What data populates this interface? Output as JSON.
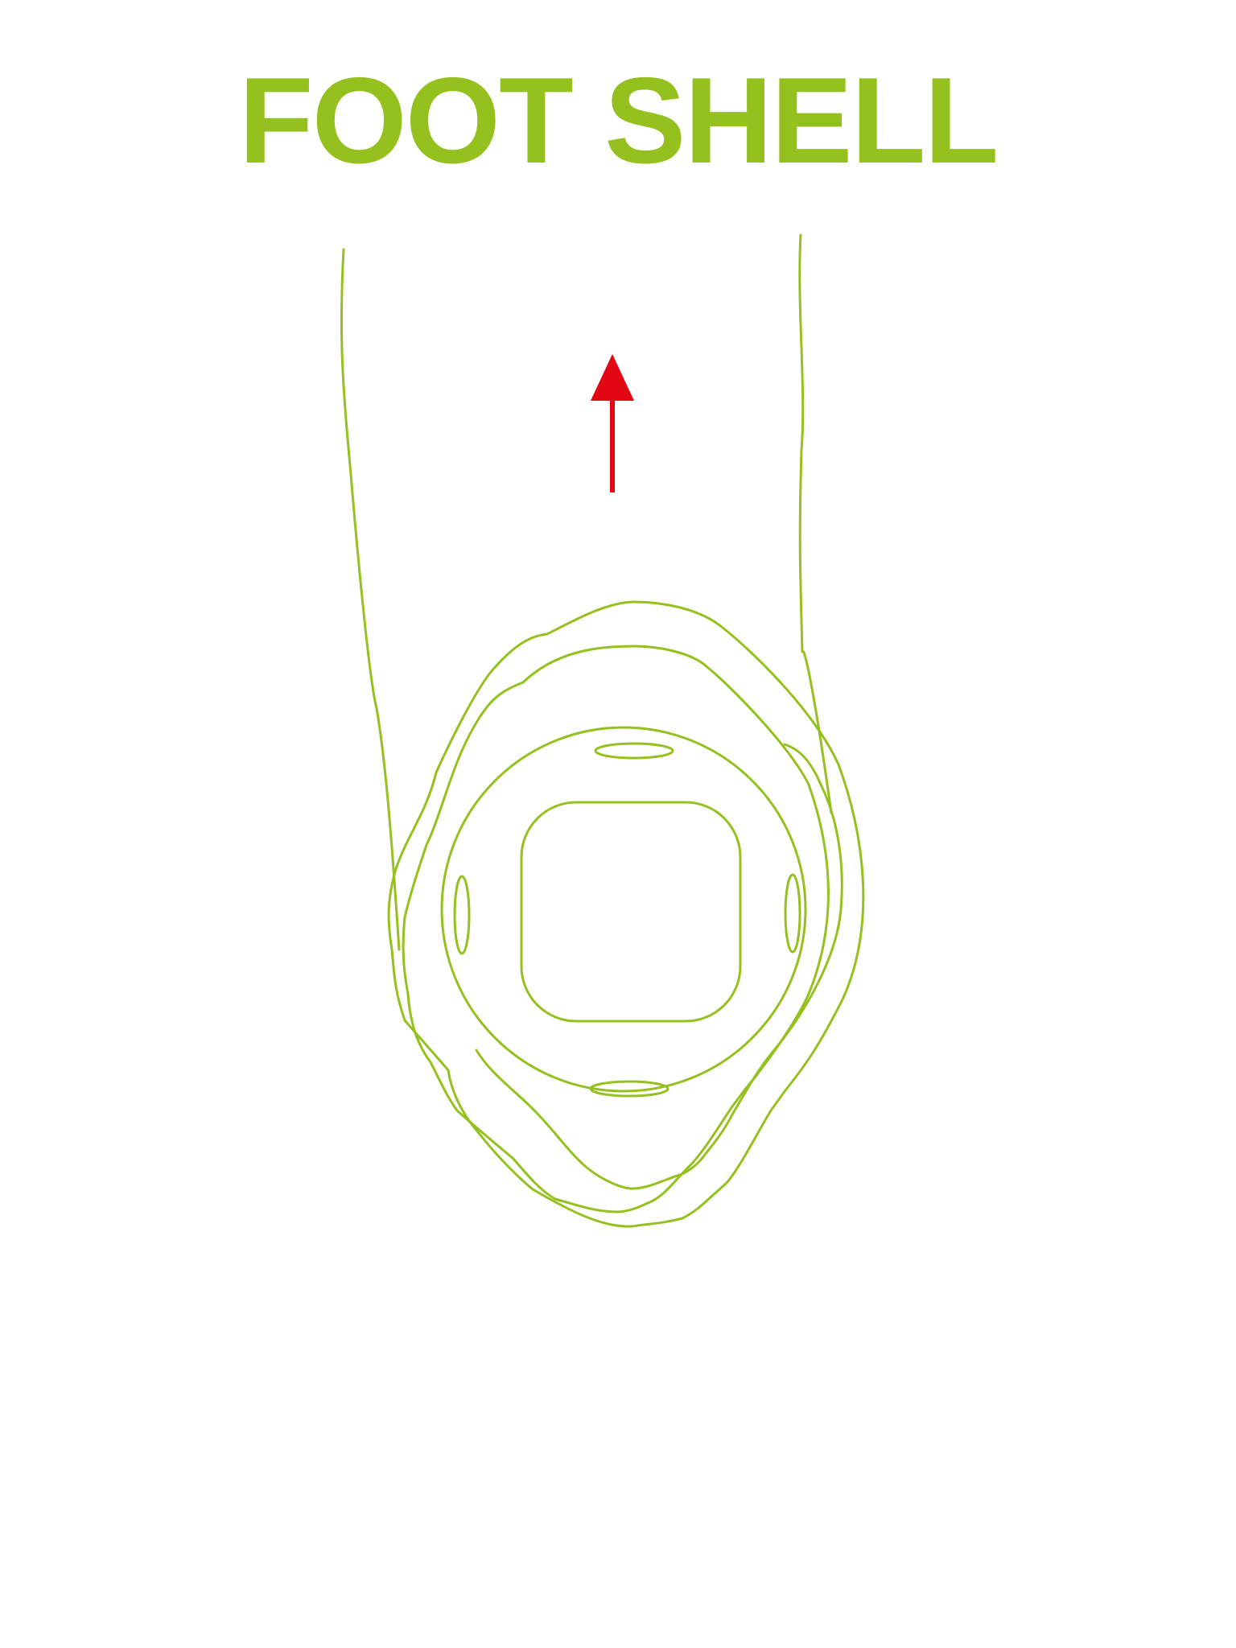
{
  "title": "FOOT SHELL",
  "colors": {
    "accent": "#95c11f",
    "arrow": "#e30613",
    "background": "#ffffff"
  },
  "icons": {
    "direction_arrow": "arrow-up-icon"
  }
}
